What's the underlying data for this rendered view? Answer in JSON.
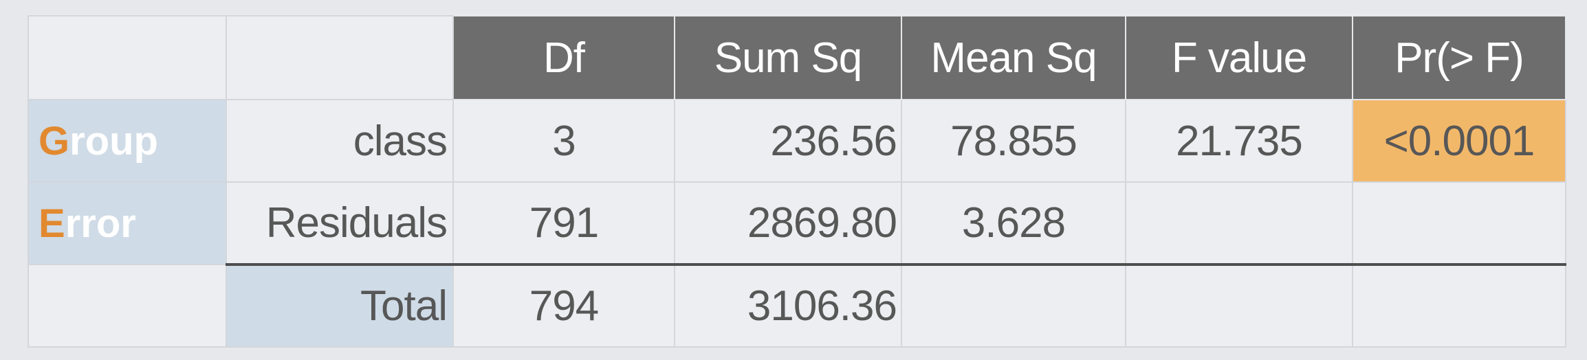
{
  "columns": [
    "",
    "",
    "Df",
    "Sum Sq",
    "Mean Sq",
    "F value",
    "Pr(> F)"
  ],
  "rows": [
    {
      "group_initial": "G",
      "group_rest": "roup",
      "label": "class",
      "df": "3",
      "sum_sq": "236.56",
      "mean_sq": "78.855",
      "f_value": "21.735",
      "p_value": "<0.0001"
    },
    {
      "group_initial": "E",
      "group_rest": "rror",
      "label": "Residuals",
      "df": "791",
      "sum_sq": "2869.80",
      "mean_sq": "3.628",
      "f_value": "",
      "p_value": ""
    },
    {
      "group_initial": "",
      "group_rest": "",
      "label": "Total",
      "df": "794",
      "sum_sq": "3106.36",
      "mean_sq": "",
      "f_value": "",
      "p_value": ""
    }
  ],
  "colors": {
    "header_bg": "#6d6d6d",
    "label_bg": "#cfdbe6",
    "highlight_bg": "#f2b86a",
    "accent_letter": "#e2892f"
  }
}
